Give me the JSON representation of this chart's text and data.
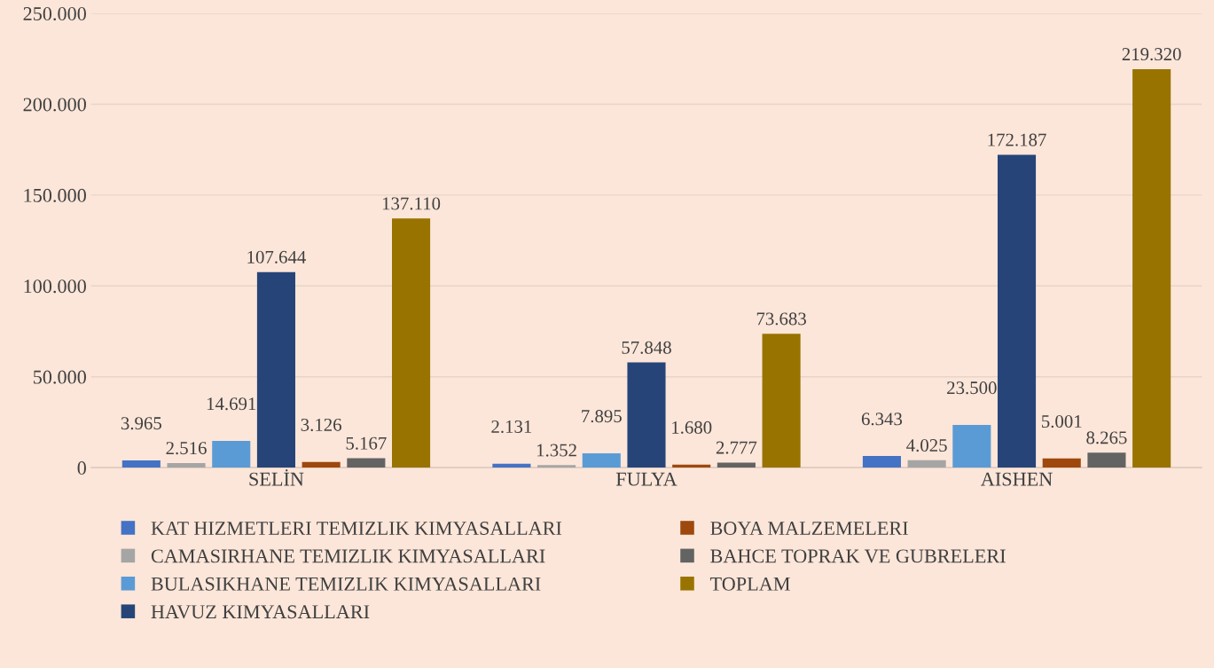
{
  "chart_data": {
    "type": "bar",
    "categories": [
      "SELİN",
      "FULYA",
      "AISHEN"
    ],
    "series": [
      {
        "name": "KAT HIZMETLERI TEMIZLIK KIMYASALLARI",
        "color": "#4472c4",
        "values": [
          3965,
          2131,
          6343
        ],
        "value_labels": [
          "3.965",
          "2.131",
          "6.343"
        ]
      },
      {
        "name": "CAMASIRHANE TEMIZLIK KIMYASALLARI",
        "color": "#a5a5a5",
        "values": [
          2516,
          1352,
          4025
        ],
        "value_labels": [
          "2.516",
          "1.352",
          "4.025"
        ]
      },
      {
        "name": "BULASIKHANE TEMIZLIK KIMYASALLARI",
        "color": "#5b9bd5",
        "values": [
          14691,
          7895,
          23500
        ],
        "value_labels": [
          "14.691",
          "7.895",
          "23.500"
        ]
      },
      {
        "name": "HAVUZ KIMYASALLARI",
        "color": "#264478",
        "values": [
          107644,
          57848,
          172187
        ],
        "value_labels": [
          "107.644",
          "57.848",
          "172.187"
        ]
      },
      {
        "name": "BOYA MALZEMELERI",
        "color": "#9e480e",
        "values": [
          3126,
          1680,
          5001
        ],
        "value_labels": [
          "3.126",
          "1.680",
          "5.001"
        ]
      },
      {
        "name": "BAHCE TOPRAK VE GUBRELERI",
        "color": "#636363",
        "values": [
          5167,
          2777,
          8265
        ],
        "value_labels": [
          "5.167",
          "2.777",
          "8.265"
        ]
      },
      {
        "name": "TOPLAM",
        "color": "#997300",
        "values": [
          137110,
          73683,
          219320
        ],
        "value_labels": [
          "137.110",
          "73.683",
          "219.320"
        ]
      }
    ],
    "ylim": [
      0,
      250000
    ],
    "yticks": [
      {
        "value": 0,
        "label": "0"
      },
      {
        "value": 50000,
        "label": "50.000"
      },
      {
        "value": 100000,
        "label": "100.000"
      },
      {
        "value": 150000,
        "label": "150.000"
      },
      {
        "value": 200000,
        "label": "200.000"
      },
      {
        "value": 250000,
        "label": "250.000"
      }
    ],
    "grid": "y",
    "legend": "bottom"
  }
}
